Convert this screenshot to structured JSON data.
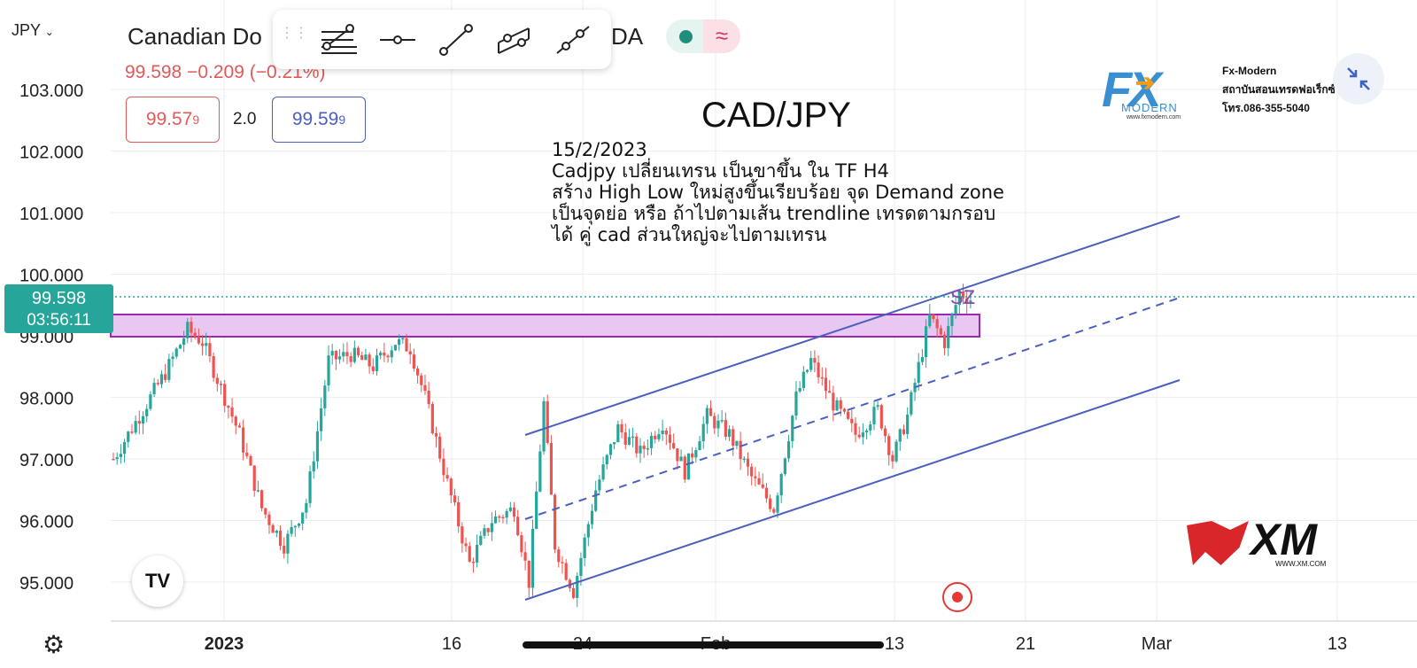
{
  "header": {
    "symbol_menu": "JPY",
    "symbol_title": "Canadian Do",
    "symbol_title_tail": "DA",
    "price_line": "99.598  −0.209 (−0.21%)",
    "bid": "99.57",
    "bid_sup": "9",
    "spread": "2.0",
    "ask": "99.59",
    "ask_sup": "9"
  },
  "current_price": {
    "value": "99.598",
    "countdown": "03:56:11"
  },
  "annotation": {
    "pair_title": "CAD/JPY",
    "lines": [
      "15/2/2023",
      "Cadjpy เปลี่ยนเทรน เป็นขาขึ้น ใน TF H4",
      "สร้าง High Low ใหม่สูงขึ้นเรียบร้อย จุด Demand zone",
      "เป็นจุดย่อ หรือ ถ้าไปตามเส้น trendline เทรดตามกรอบ",
      "ได้ คู่ cad ส่วนใหญ่จะไปตามเทรน"
    ],
    "zone_label": "SZ"
  },
  "logos": {
    "fx_modern_name": "Fx-Modern",
    "fx_modern_line2": "สถาบันสอนเทรดฟอเร็กซ์",
    "fx_modern_phone": "โทร.086-355-5040",
    "fx_modern_url": "www.fxmodern.com",
    "fx_logo_text": "FX",
    "fx_logo_sub": "MODERN",
    "xm_text": "XM",
    "xm_url": "WWW.XM.COM",
    "tv_text": "TV"
  },
  "colors": {
    "up": "#26a69a",
    "down": "#ef5350",
    "channel": "#4a5fc1",
    "zone_fill": "#e8c8f2",
    "zone_border": "#9c27b0",
    "price_tag": "#26a69a"
  },
  "chart_data": {
    "type": "candlestick",
    "title": "CAD/JPY",
    "y_ticks": [
      "103.000",
      "102.000",
      "101.000",
      "100.000",
      "99.000",
      "98.000",
      "97.000",
      "96.000",
      "95.000"
    ],
    "x_ticks": [
      "2023",
      "16",
      "24",
      "Feb",
      "13",
      "21",
      "Mar",
      "13"
    ],
    "ylim": [
      94.4,
      103.9
    ],
    "current_price": 99.598,
    "demand_zone": [
      98.94,
      99.32
    ],
    "price_path": [
      [
        0,
        97.0
      ],
      [
        8,
        97.8
      ],
      [
        14,
        98.4
      ],
      [
        20,
        99.1
      ],
      [
        24,
        98.9
      ],
      [
        28,
        98.3
      ],
      [
        34,
        97.4
      ],
      [
        40,
        96.2
      ],
      [
        46,
        95.6
      ],
      [
        52,
        96.3
      ],
      [
        58,
        98.6
      ],
      [
        64,
        98.7
      ],
      [
        70,
        98.5
      ],
      [
        76,
        98.9
      ],
      [
        80,
        98.8
      ],
      [
        84,
        98.0
      ],
      [
        90,
        96.6
      ],
      [
        96,
        95.3
      ],
      [
        102,
        96.0
      ],
      [
        108,
        96.2
      ],
      [
        112,
        95.0
      ],
      [
        116,
        97.9
      ],
      [
        119,
        95.6
      ],
      [
        124,
        94.85
      ],
      [
        130,
        96.5
      ],
      [
        136,
        97.5
      ],
      [
        142,
        97.1
      ],
      [
        148,
        97.6
      ],
      [
        154,
        96.8
      ],
      [
        160,
        97.7
      ],
      [
        166,
        97.4
      ],
      [
        172,
        96.7
      ],
      [
        178,
        96.2
      ],
      [
        184,
        98.0
      ],
      [
        188,
        98.6
      ],
      [
        194,
        97.9
      ],
      [
        200,
        97.4
      ],
      [
        206,
        97.8
      ],
      [
        210,
        97.0
      ],
      [
        214,
        97.7
      ],
      [
        220,
        99.3
      ],
      [
        224,
        98.9
      ],
      [
        228,
        99.7
      ],
      [
        231,
        99.6
      ]
    ]
  }
}
